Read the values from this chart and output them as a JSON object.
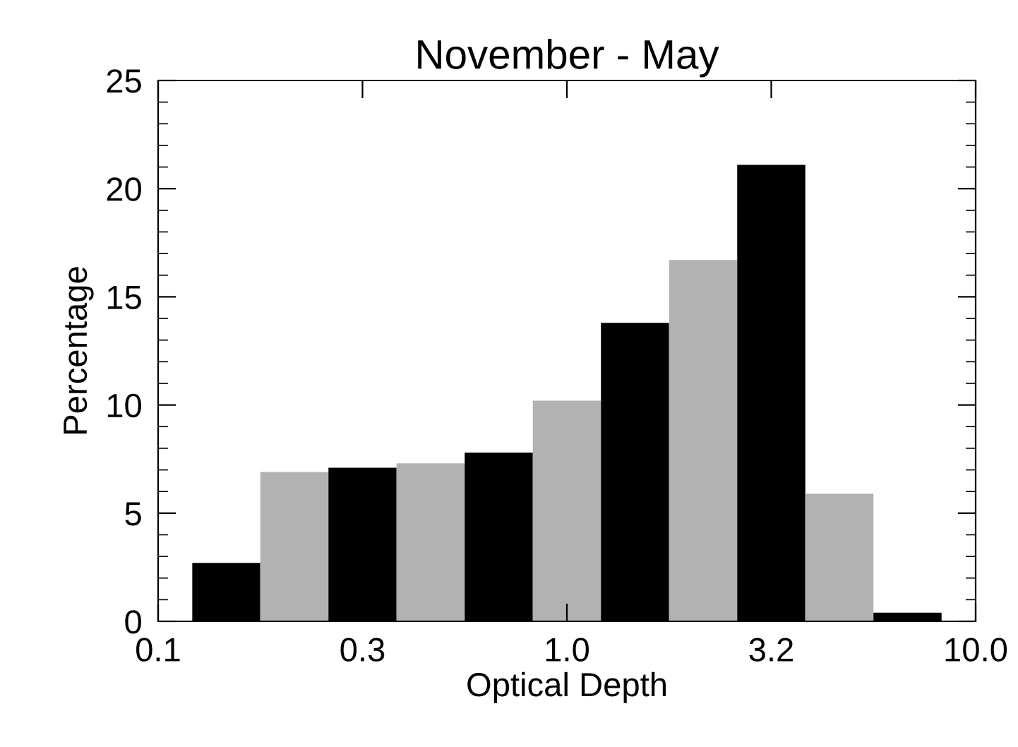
{
  "chart_data": {
    "type": "histogram",
    "title": "November - May",
    "xlabel": "Optical Depth",
    "ylabel": "Percentage",
    "bins": [
      0.1212,
      0.1778,
      0.261,
      0.3831,
      0.5623,
      0.8254,
      1.2115,
      1.7783,
      2.6102,
      3.8312,
      5.6234,
      8.254
    ],
    "values": [
      2.7,
      6.9,
      7.1,
      7.3,
      7.8,
      10.2,
      13.8,
      16.7,
      21.1,
      5.9,
      0.4
    ],
    "colors": [
      "#000000",
      "#b2b2b2",
      "#000000",
      "#b2b2b2",
      "#000000",
      "#b2b2b2",
      "#000000",
      "#b2b2b2",
      "#000000",
      "#b2b2b2",
      "#000000"
    ],
    "log": "x",
    "xlim": [
      0.1,
      10.0
    ],
    "xticks": [
      {
        "value": 0.1,
        "label": "0.1"
      },
      {
        "value": 0.3162,
        "label": "0.3"
      },
      {
        "value": 1.0,
        "label": "1.0"
      },
      {
        "value": 3.162,
        "label": "3.2"
      },
      {
        "value": 10.0,
        "label": "10.0"
      }
    ],
    "ylim": [
      0,
      25
    ],
    "yticks": [
      0,
      5,
      10,
      15,
      20,
      25
    ],
    "grid": false,
    "legend": false
  }
}
